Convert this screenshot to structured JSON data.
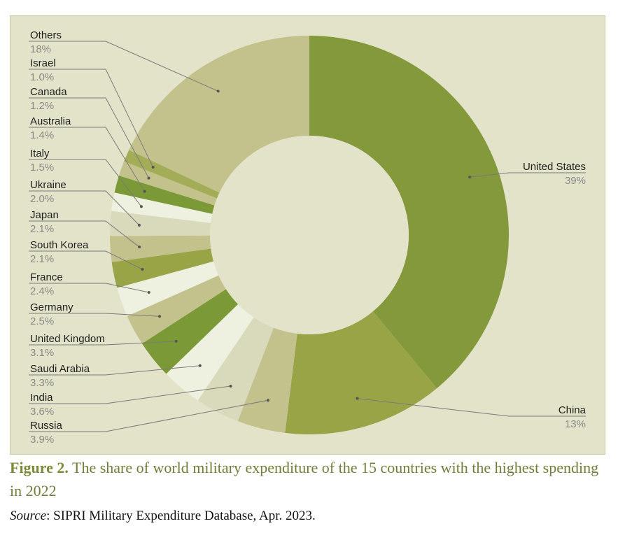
{
  "chart_data": {
    "type": "pie",
    "style": "donut",
    "title": "Figure 2. The share of world military expenditure of the 15 countries with the highest spending in 2022",
    "slices": [
      {
        "name": "United States",
        "value": 39,
        "label": "39%",
        "color": "#84993b"
      },
      {
        "name": "China",
        "value": 13,
        "label": "13%",
        "color": "#99a447"
      },
      {
        "name": "Russia",
        "value": 3.9,
        "label": "3.9%",
        "color": "#c3c28d"
      },
      {
        "name": "India",
        "value": 3.6,
        "label": "3.6%",
        "color": "#d9dabb"
      },
      {
        "name": "Saudi Arabia",
        "value": 3.3,
        "label": "3.3%",
        "color": "#eef0e0"
      },
      {
        "name": "United Kingdom",
        "value": 3.1,
        "label": "3.1%",
        "color": "#7b9a37"
      },
      {
        "name": "Germany",
        "value": 2.5,
        "label": "2.5%",
        "color": "#c3c28d"
      },
      {
        "name": "France",
        "value": 2.4,
        "label": "2.4%",
        "color": "#eef0e0"
      },
      {
        "name": "South Korea",
        "value": 2.1,
        "label": "2.1%",
        "color": "#99a447"
      },
      {
        "name": "Japan",
        "value": 2.1,
        "label": "2.1%",
        "color": "#c3c28d"
      },
      {
        "name": "Ukraine",
        "value": 2.0,
        "label": "2.0%",
        "color": "#d9dabb"
      },
      {
        "name": "Italy",
        "value": 1.5,
        "label": "1.5%",
        "color": "#eef0e0"
      },
      {
        "name": "Australia",
        "value": 1.4,
        "label": "1.4%",
        "color": "#7b9a37"
      },
      {
        "name": "Canada",
        "value": 1.2,
        "label": "1.2%",
        "color": "#c3c28d"
      },
      {
        "name": "Israel",
        "value": 1.0,
        "label": "1.0%",
        "color": "#a3ad58"
      },
      {
        "name": "Others",
        "value": 18,
        "label": "18%",
        "color": "#c3c28d"
      }
    ],
    "legend": "none",
    "labels": "outside-with-leader-lines"
  },
  "caption": {
    "figure_label": "Figure 2.",
    "text": " The share of world military expenditure of the 15 countries with the highest spending in 2022"
  },
  "source": {
    "label": "Source",
    "text": ": SIPRI Military Expenditure Database, Apr. 2023."
  },
  "colors": {
    "background": "#e3e3c9",
    "hole": "#e3e3c9",
    "leader_line": "#7a7a7a",
    "caption": "#6f7f3a"
  }
}
